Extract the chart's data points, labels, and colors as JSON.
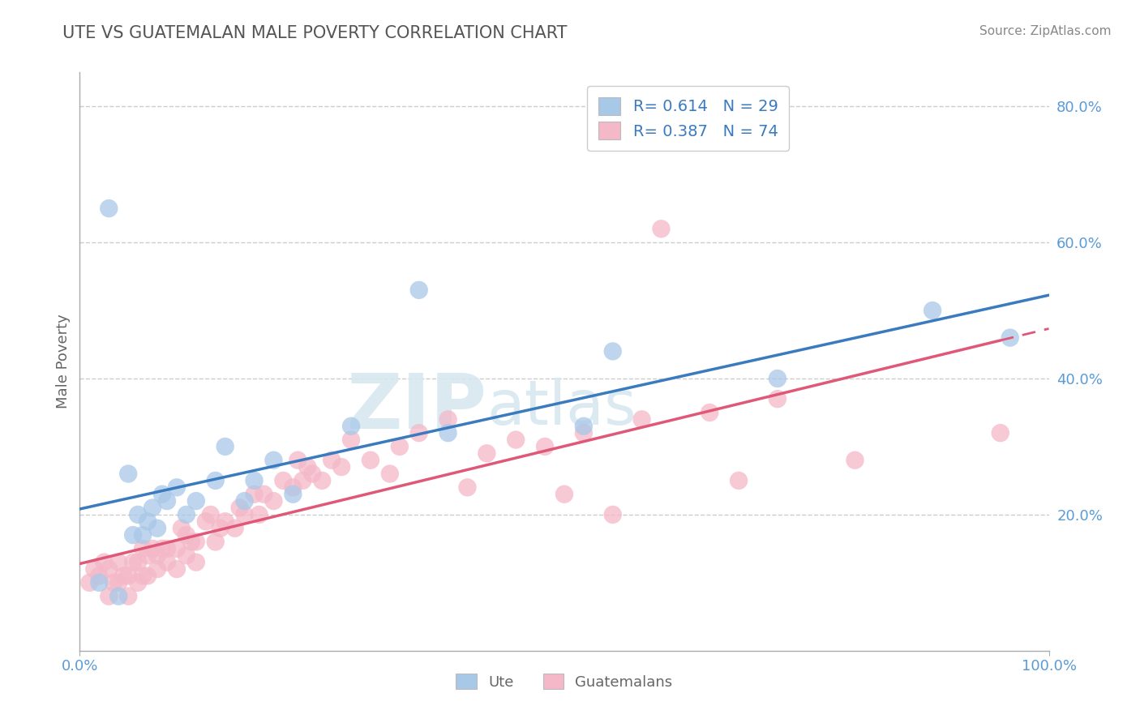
{
  "title": "UTE VS GUATEMALAN MALE POVERTY CORRELATION CHART",
  "source": "Source: ZipAtlas.com",
  "ylabel": "Male Poverty",
  "watermark_zip": "ZIP",
  "watermark_atlas": "atlas",
  "ute_color": "#a8c8e8",
  "guatemalan_color": "#f4b8c8",
  "ute_line_color": "#3a7abf",
  "guatemalan_line_color": "#e05878",
  "ute_R": 0.614,
  "ute_N": 29,
  "guatemalan_R": 0.387,
  "guatemalan_N": 74,
  "background_color": "#ffffff",
  "tick_color": "#5b9bd5",
  "axis_color": "#aaaaaa",
  "ytick_right_values": [
    0.2,
    0.4,
    0.6,
    0.8
  ],
  "ytick_right_labels": [
    "20.0%",
    "40.0%",
    "60.0%",
    "80.0%"
  ],
  "ute_scatter_x": [
    0.02,
    0.03,
    0.04,
    0.05,
    0.055,
    0.06,
    0.065,
    0.07,
    0.075,
    0.08,
    0.085,
    0.09,
    0.1,
    0.11,
    0.12,
    0.14,
    0.15,
    0.17,
    0.18,
    0.2,
    0.22,
    0.28,
    0.35,
    0.38,
    0.52,
    0.55,
    0.72,
    0.88,
    0.96
  ],
  "ute_scatter_y": [
    0.1,
    0.65,
    0.08,
    0.26,
    0.17,
    0.2,
    0.17,
    0.19,
    0.21,
    0.18,
    0.23,
    0.22,
    0.24,
    0.2,
    0.22,
    0.25,
    0.3,
    0.22,
    0.25,
    0.28,
    0.23,
    0.33,
    0.53,
    0.32,
    0.33,
    0.44,
    0.4,
    0.5,
    0.46
  ],
  "guatemalan_scatter_x": [
    0.01,
    0.015,
    0.02,
    0.025,
    0.03,
    0.03,
    0.035,
    0.04,
    0.04,
    0.045,
    0.05,
    0.05,
    0.055,
    0.06,
    0.06,
    0.065,
    0.065,
    0.07,
    0.07,
    0.075,
    0.08,
    0.08,
    0.085,
    0.09,
    0.09,
    0.1,
    0.1,
    0.105,
    0.11,
    0.11,
    0.115,
    0.12,
    0.12,
    0.13,
    0.135,
    0.14,
    0.145,
    0.15,
    0.16,
    0.165,
    0.17,
    0.18,
    0.185,
    0.19,
    0.2,
    0.21,
    0.22,
    0.225,
    0.23,
    0.235,
    0.24,
    0.25,
    0.26,
    0.27,
    0.28,
    0.3,
    0.32,
    0.33,
    0.35,
    0.38,
    0.4,
    0.42,
    0.45,
    0.48,
    0.5,
    0.52,
    0.55,
    0.58,
    0.6,
    0.65,
    0.68,
    0.72,
    0.8,
    0.95
  ],
  "guatemalan_scatter_y": [
    0.1,
    0.12,
    0.11,
    0.13,
    0.08,
    0.12,
    0.1,
    0.1,
    0.13,
    0.11,
    0.08,
    0.11,
    0.13,
    0.1,
    0.13,
    0.11,
    0.15,
    0.11,
    0.14,
    0.15,
    0.12,
    0.14,
    0.15,
    0.13,
    0.15,
    0.12,
    0.15,
    0.18,
    0.14,
    0.17,
    0.16,
    0.13,
    0.16,
    0.19,
    0.2,
    0.16,
    0.18,
    0.19,
    0.18,
    0.21,
    0.2,
    0.23,
    0.2,
    0.23,
    0.22,
    0.25,
    0.24,
    0.28,
    0.25,
    0.27,
    0.26,
    0.25,
    0.28,
    0.27,
    0.31,
    0.28,
    0.26,
    0.3,
    0.32,
    0.34,
    0.24,
    0.29,
    0.31,
    0.3,
    0.23,
    0.32,
    0.2,
    0.34,
    0.62,
    0.35,
    0.25,
    0.37,
    0.28,
    0.32
  ]
}
